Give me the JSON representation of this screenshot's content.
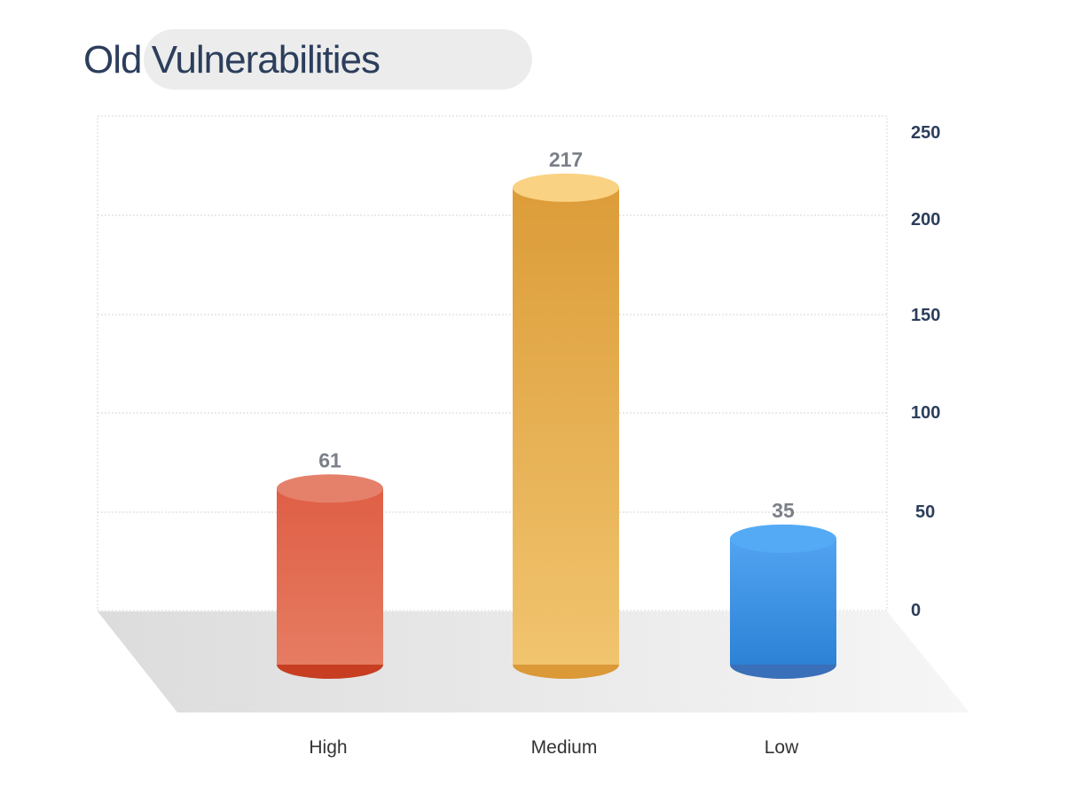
{
  "chart_data": {
    "type": "bar",
    "title": "Old Vulnerabilities",
    "categories": [
      "High",
      "Medium",
      "Low"
    ],
    "values": [
      61,
      217,
      35
    ],
    "data_labels": [
      "61",
      "217",
      "35"
    ],
    "ylim": [
      0,
      250
    ],
    "yticks": [
      0,
      50,
      100,
      150,
      200,
      250
    ],
    "ytick_labels": [
      "0",
      "50",
      "100",
      "150",
      "200",
      "250"
    ],
    "yaxis_position": "right",
    "grid": true,
    "legend": "none",
    "style": "3d-cylinder",
    "colors": {
      "High": {
        "top": "#e5816b",
        "body_top": "#df5f45",
        "body_bottom": "#e67c62",
        "base": "#c73e22"
      },
      "Medium": {
        "top": "#fad283",
        "body_top": "#dc9c39",
        "body_bottom": "#f1c46e",
        "base": "#db9937"
      },
      "Low": {
        "top": "#55aaf6",
        "body_top": "#52a4f1",
        "body_bottom": "#2d82d6",
        "base": "#3a6fb9"
      }
    }
  }
}
